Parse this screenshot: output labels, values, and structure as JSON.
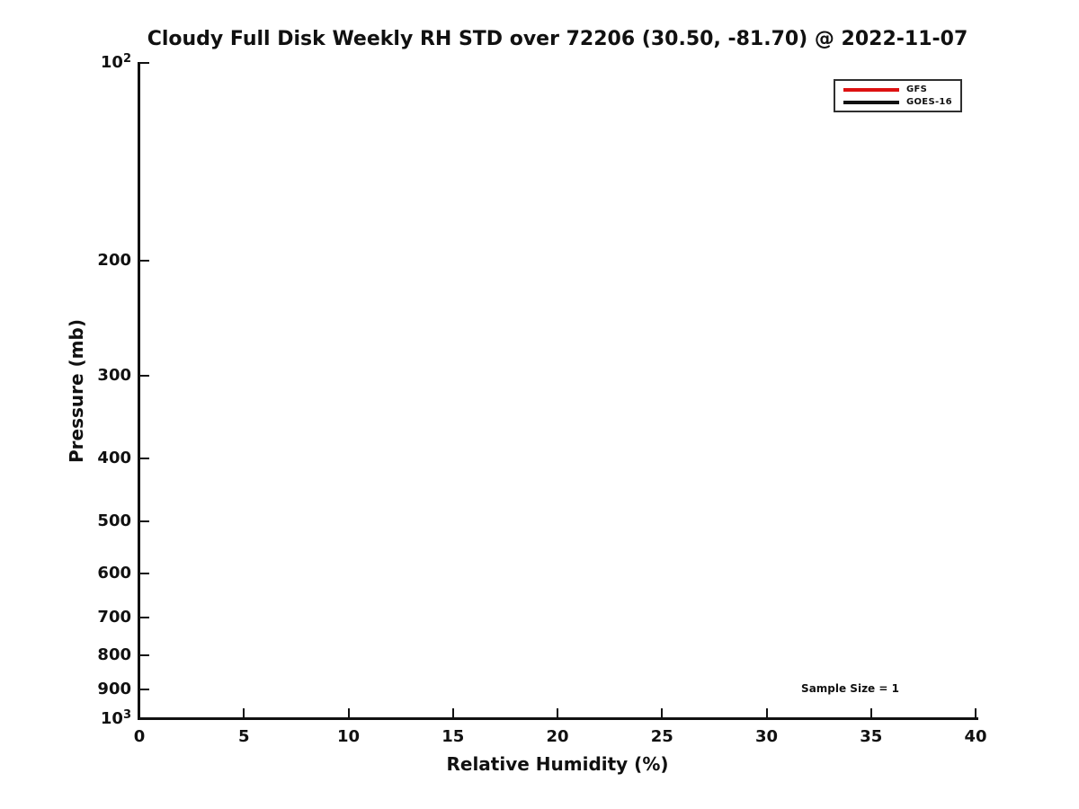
{
  "chart_data": {
    "type": "line",
    "title": "Cloudy Full Disk Weekly RH STD over 72206 (30.50, -81.70) @ 2022-11-07",
    "xlabel": "Relative Humidity (%)",
    "ylabel": "Pressure (mb)",
    "xlim": [
      0,
      40
    ],
    "x_ticks": [
      0,
      5,
      10,
      15,
      20,
      25,
      30,
      35,
      40
    ],
    "x_tick_labels": [
      "0",
      "5",
      "10",
      "15",
      "20",
      "25",
      "30",
      "35",
      "40"
    ],
    "y_scale": "log",
    "y_inverted": true,
    "ylim": [
      100,
      1000
    ],
    "y_ticks": [
      100,
      200,
      300,
      400,
      500,
      600,
      700,
      800,
      900,
      1000
    ],
    "y_tick_labels": [
      "10^2",
      "200",
      "300",
      "400",
      "500",
      "600",
      "700",
      "800",
      "900",
      "10^3"
    ],
    "grid": false,
    "axis_color": "#111111",
    "background_color": "#ffffff",
    "legend_position": "top-right",
    "series": [
      {
        "name": "GFS",
        "color": "#dd1111",
        "values": []
      },
      {
        "name": "GOES-16",
        "color": "#111111",
        "values": []
      }
    ],
    "annotation": {
      "text": "Sample Size = 1",
      "x": 34,
      "y_pressure": 898
    }
  }
}
